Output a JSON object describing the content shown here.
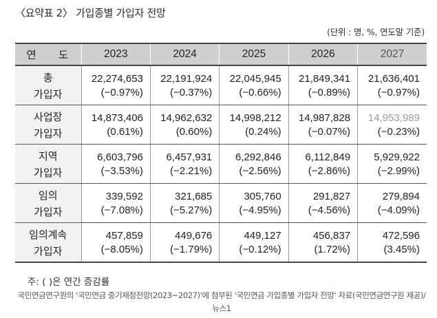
{
  "title": "〈요약표 2〉 가입종별 가입자 전망",
  "unit": "(단위 : 명, %, 연도말 기준)",
  "table": {
    "header": [
      "연 도",
      "2023",
      "2024",
      "2025",
      "2026",
      "2027"
    ],
    "rows": [
      {
        "category": [
          "총",
          "가입자"
        ],
        "values": [
          "22,274,653",
          "22,191,924",
          "22,045,945",
          "21,849,341",
          "21,636,401"
        ],
        "pct": [
          "(−0.97%)",
          "(−0.37%)",
          "(−0.66%)",
          "(−0.89%)",
          "(−0.97%)"
        ]
      },
      {
        "category": [
          "사업장",
          "가입자"
        ],
        "values": [
          "14,873,406",
          "14,962,632",
          "14,998,212",
          "14,987,828",
          "14,953,989"
        ],
        "pct": [
          "(0.61%)",
          "(0.60%)",
          "(0.24%)",
          "(−0.07%)",
          "(−0.23%)"
        ]
      },
      {
        "category": [
          "지역",
          "가입자"
        ],
        "values": [
          "6,603,796",
          "6,457,931",
          "6,292,846",
          "6,112,849",
          "5,929,922"
        ],
        "pct": [
          "(−3.53%)",
          "(−2.21%)",
          "(−2.56%)",
          "(−2.86%)",
          "(−2.99%)"
        ]
      },
      {
        "category": [
          "임의",
          "가입자"
        ],
        "values": [
          "339,592",
          "321,685",
          "305,760",
          "291,827",
          "279,894"
        ],
        "pct": [
          "(−7.08%)",
          "(−5.27%)",
          "(−4.95%)",
          "(−4.56%)",
          "(−4.09%)"
        ]
      },
      {
        "category": [
          "임의계속",
          "가입자"
        ],
        "values": [
          "457,859",
          "449,676",
          "449,127",
          "456,837",
          "472,596"
        ],
        "pct": [
          "(−8.05%)",
          "(−1.79%)",
          "(−0.12%)",
          "(1.72%)",
          "(3.45%)"
        ]
      }
    ]
  },
  "note": "주: ( )은 연간 증감률",
  "caption": "국민연금연구원의 '국민연금 중기재정전망(2023~2027)'에 첨부된 '국민연금 가입종별 가입자 전망' 자료(국민연금연구원 제공)/뉴스1"
}
